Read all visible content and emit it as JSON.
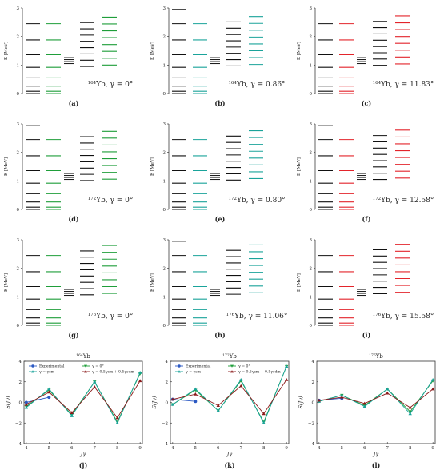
{
  "colors": {
    "black": "#111111",
    "teal": "#1aa39a",
    "green": "#1f9e3a",
    "red": "#e3242b",
    "blue": "#2b59c3",
    "orange": "#c8651b",
    "darkred": "#8b1a1a"
  },
  "level_panels": {
    "ylabel": "E [MeV]",
    "yticks": [
      "0",
      "1",
      "2",
      "3"
    ],
    "items": [
      {
        "id": "a",
        "label": "(a)",
        "caption_nuc": "164",
        "caption_sym": "Yb, γ = 0°",
        "accent": "green"
      },
      {
        "id": "b",
        "label": "(b)",
        "caption_nuc": "164",
        "caption_sym": "Yb, γ = 0.86°",
        "accent": "teal"
      },
      {
        "id": "c",
        "label": "(c)",
        "caption_nuc": "164",
        "caption_sym": "Yb, γ = 11.83°",
        "accent": "red"
      },
      {
        "id": "d",
        "label": "(d)",
        "caption_nuc": "172",
        "caption_sym": "Yb, γ = 0°",
        "accent": "green"
      },
      {
        "id": "e",
        "label": "(e)",
        "caption_nuc": "172",
        "caption_sym": "Yb, γ = 0.80°",
        "accent": "teal"
      },
      {
        "id": "f",
        "label": "(f)",
        "caption_nuc": "172",
        "caption_sym": "Yb, γ = 12.58°",
        "accent": "red"
      },
      {
        "id": "g",
        "label": "(g)",
        "caption_nuc": "176",
        "caption_sym": "Yb, γ = 0°",
        "accent": "green"
      },
      {
        "id": "h",
        "label": "(h)",
        "caption_nuc": "176",
        "caption_sym": "Yb, γ = 11.06°",
        "accent": "teal"
      },
      {
        "id": "i",
        "label": "(i)",
        "caption_nuc": "176",
        "caption_sym": "Yb, γ = 15.58°",
        "accent": "red"
      }
    ]
  },
  "chart_data": [
    {
      "type": "line",
      "panel": "(j)",
      "title": "164Yb",
      "title_nuc": "164",
      "title_sym": "Yb",
      "xlabel": "Jγ",
      "ylabel": "S(Jγ)",
      "x": [
        4,
        5,
        6,
        7,
        8,
        9
      ],
      "xlim": [
        3.9,
        9.1
      ],
      "ylim": [
        -4,
        4
      ],
      "yticks": [
        -4,
        -2,
        0,
        2,
        4
      ],
      "series": [
        {
          "name": "Experimental",
          "values": [
            0.0,
            0.5,
            null,
            null,
            null,
            null
          ],
          "color": "blue",
          "marker": "circle"
        },
        {
          "name": "γ = 0°",
          "values": [
            -0.4,
            1.2,
            -1.2,
            2.0,
            -1.9,
            2.8
          ],
          "color": "green",
          "marker": "tri-down"
        },
        {
          "name": "γ = γsm",
          "values": [
            -0.5,
            1.3,
            -1.3,
            2.0,
            -2.0,
            2.9
          ],
          "color": "teal",
          "marker": "tri-up"
        },
        {
          "name": "γ = 0.5γsm + 0.5γsdm",
          "values": [
            -0.2,
            1.0,
            -1.0,
            1.5,
            -1.5,
            2.1
          ],
          "color": "darkred",
          "marker": "tri-up"
        }
      ],
      "legend": "top"
    },
    {
      "type": "line",
      "panel": "(k)",
      "title": "172Yb",
      "title_nuc": "172",
      "title_sym": "Yb",
      "xlabel": "Jγ",
      "ylabel": "S(Jγ)",
      "x": [
        4,
        5,
        6,
        7,
        8,
        9
      ],
      "xlim": [
        3.9,
        9.1
      ],
      "ylim": [
        -4,
        4
      ],
      "yticks": [
        -4,
        -2,
        0,
        2,
        4
      ],
      "series": [
        {
          "name": "Experimental",
          "values": [
            0.3,
            0.1,
            null,
            null,
            null,
            null
          ],
          "color": "blue",
          "marker": "circle"
        },
        {
          "name": "γ = 0°",
          "values": [
            -0.2,
            1.2,
            -0.8,
            2.1,
            -1.9,
            3.5
          ],
          "color": "green",
          "marker": "tri-down"
        },
        {
          "name": "γ = γsm",
          "values": [
            -0.2,
            1.3,
            -0.8,
            2.2,
            -2.0,
            3.5
          ],
          "color": "teal",
          "marker": "tri-up"
        },
        {
          "name": "γ = 0.5γsm + 0.5γsdm",
          "values": [
            0.3,
            0.8,
            -0.3,
            1.6,
            -1.1,
            2.2
          ],
          "color": "darkred",
          "marker": "tri-up"
        }
      ],
      "legend": "top"
    },
    {
      "type": "line",
      "panel": "(l)",
      "title": "176Yb",
      "title_nuc": "176",
      "title_sym": "Yb",
      "xlabel": "Jγ",
      "ylabel": "S(Jγ)",
      "x": [
        4,
        5,
        6,
        7,
        8,
        9
      ],
      "xlim": [
        3.9,
        9.1
      ],
      "ylim": [
        -4,
        4
      ],
      "yticks": [
        -4,
        -2,
        0,
        2,
        4
      ],
      "series": [
        {
          "name": "Experimental",
          "values": [
            0.2,
            0.4,
            null,
            null,
            null,
            null
          ],
          "color": "blue",
          "marker": "circle"
        },
        {
          "name": "γ = 0°",
          "values": [
            0.1,
            0.7,
            -0.3,
            1.3,
            -0.9,
            2.1
          ],
          "color": "green",
          "marker": "tri-down"
        },
        {
          "name": "γ = γsm",
          "values": [
            0.1,
            0.7,
            -0.4,
            1.3,
            -1.1,
            2.2
          ],
          "color": "teal",
          "marker": "tri-up"
        },
        {
          "name": "γ = 0.5γsm + 0.5γsdm",
          "values": [
            0.2,
            0.5,
            -0.1,
            0.9,
            -0.5,
            1.3
          ],
          "color": "darkred",
          "marker": "tri-up"
        }
      ],
      "legend": "none"
    }
  ]
}
